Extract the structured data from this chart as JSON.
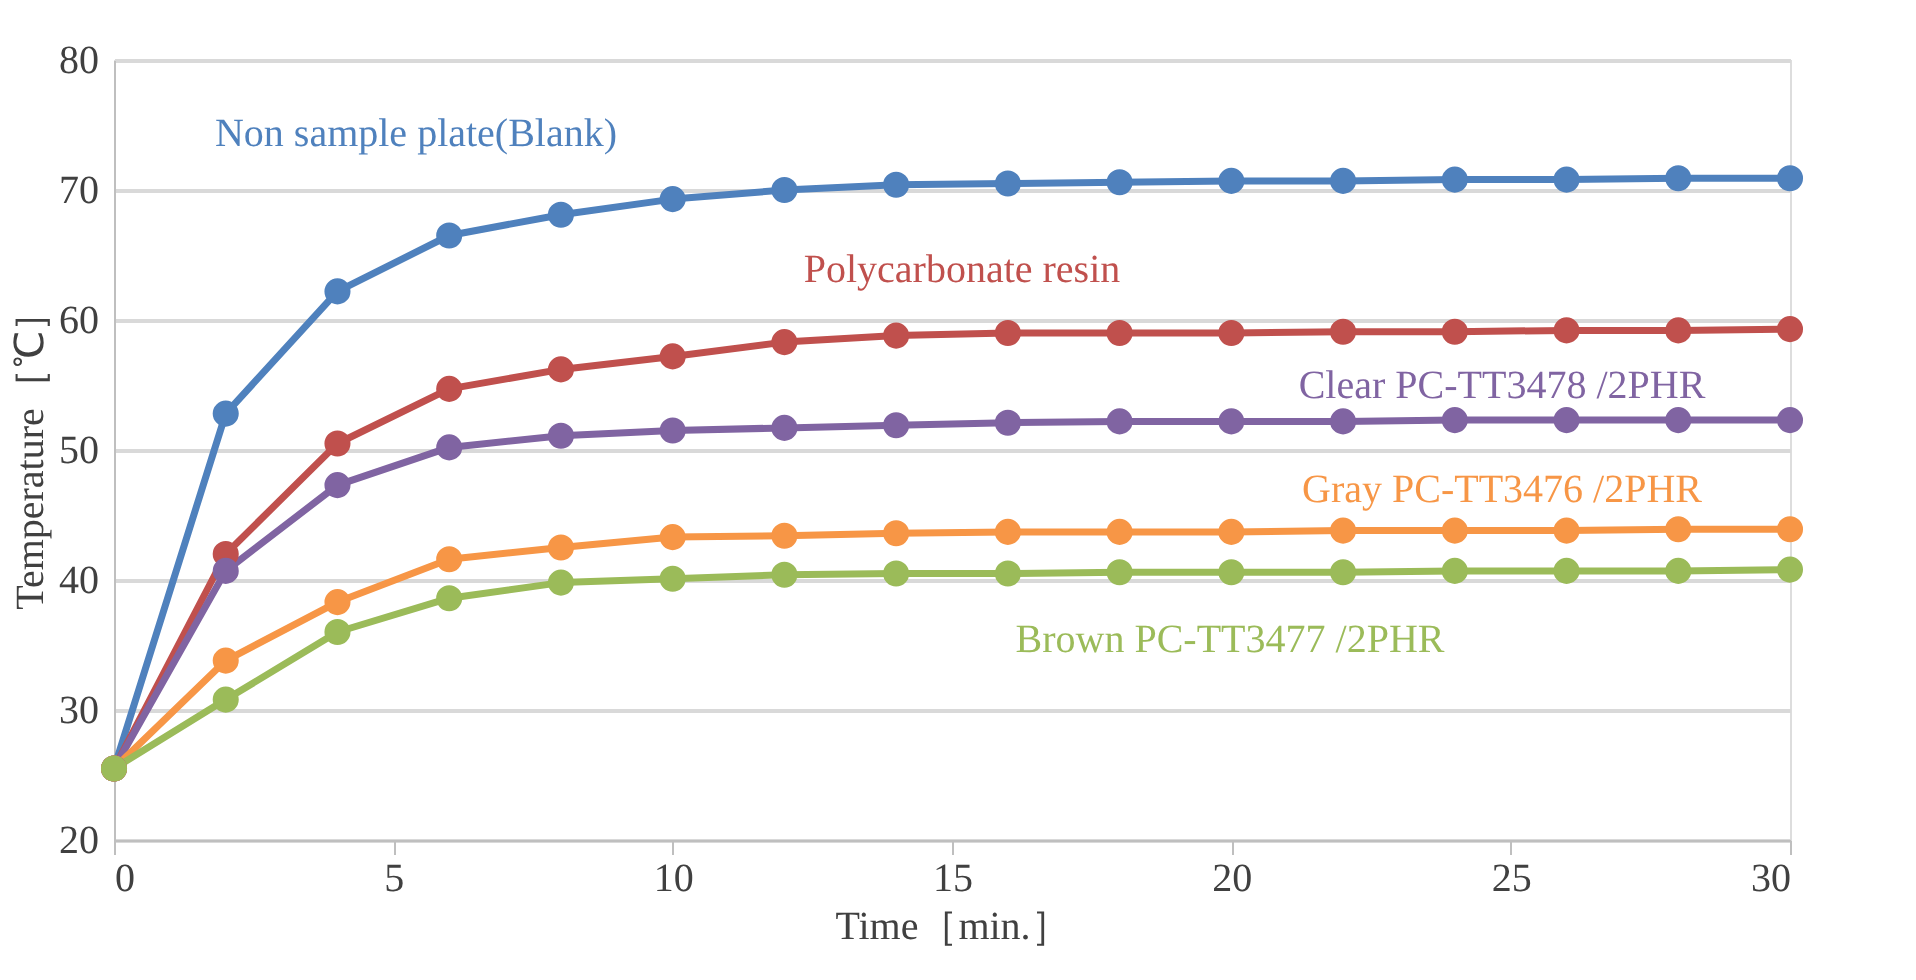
{
  "chart_data": {
    "type": "line",
    "xlabel": "Time［min.］",
    "ylabel": "Temperature［℃］",
    "x": [
      0,
      2,
      4,
      6,
      8,
      10,
      12,
      14,
      16,
      18,
      20,
      22,
      24,
      26,
      28,
      30
    ],
    "xlim": [
      0,
      30
    ],
    "xticks": [
      0,
      5,
      10,
      15,
      20,
      25,
      30
    ],
    "ylim": [
      20,
      80
    ],
    "yticks": [
      20,
      30,
      40,
      50,
      60,
      70,
      80
    ],
    "grid": "y",
    "marker": "circle",
    "line_style": "solid",
    "legend": false,
    "series": [
      {
        "name": "Non sample plate(Blank)",
        "color": "#4f81bd",
        "values": [
          25.5,
          52.8,
          62.2,
          66.5,
          68.1,
          69.3,
          70.0,
          70.4,
          70.5,
          70.6,
          70.7,
          70.7,
          70.8,
          70.8,
          70.9,
          70.9
        ]
      },
      {
        "name": "Polycarbonate resin",
        "color": "#c0504d",
        "values": [
          25.5,
          42.0,
          50.5,
          54.7,
          56.2,
          57.2,
          58.3,
          58.8,
          59.0,
          59.0,
          59.0,
          59.1,
          59.1,
          59.2,
          59.2,
          59.3
        ]
      },
      {
        "name": "Clear PC-TT3478 /2PHR",
        "color": "#8064a2",
        "values": [
          25.5,
          40.7,
          47.3,
          50.2,
          51.1,
          51.5,
          51.7,
          51.9,
          52.1,
          52.2,
          52.2,
          52.2,
          52.3,
          52.3,
          52.3,
          52.3
        ]
      },
      {
        "name": "Gray PC-TT3476 /2PHR",
        "color": "#f79646",
        "values": [
          25.5,
          33.8,
          38.3,
          41.6,
          42.5,
          43.3,
          43.4,
          43.6,
          43.7,
          43.7,
          43.7,
          43.8,
          43.8,
          43.8,
          43.9,
          43.9
        ]
      },
      {
        "name": "Brown PC-TT3477 /2PHR",
        "color": "#9bbb59",
        "values": [
          25.5,
          30.8,
          36.0,
          38.6,
          39.8,
          40.1,
          40.4,
          40.5,
          40.5,
          40.6,
          40.6,
          40.6,
          40.7,
          40.7,
          40.7,
          40.8
        ]
      }
    ]
  }
}
